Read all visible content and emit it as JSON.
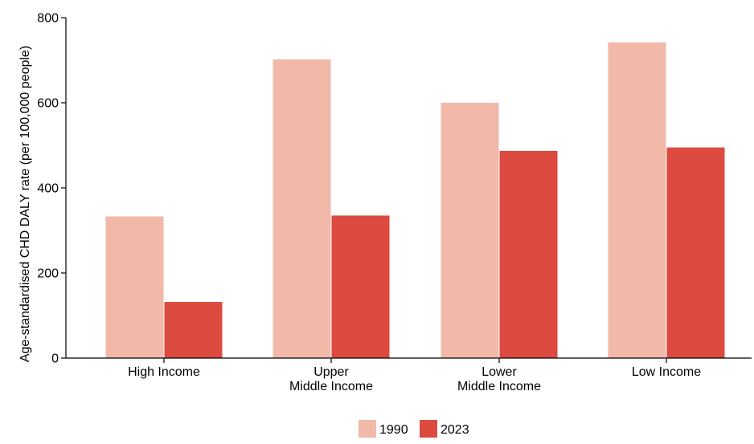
{
  "colors": {
    "series_1990": "#f2b8a8",
    "series_2023": "#dd4a3f",
    "axis": "#000000"
  },
  "chart_data": {
    "type": "bar",
    "title": "",
    "xlabel": "",
    "ylabel": "Age-standardised CHD DALY rate (per 100,000 people)",
    "ylim": [
      0,
      800
    ],
    "yticks": [
      0,
      200,
      400,
      600,
      800
    ],
    "grid": false,
    "legend_placement": "bottom-center",
    "categories": [
      [
        "High Income"
      ],
      [
        "Upper",
        "Middle Income"
      ],
      [
        "Lower",
        "Middle Income"
      ],
      [
        "Low Income"
      ]
    ],
    "series": [
      {
        "name": "1990",
        "color": "#f2b8a8",
        "values": [
          333,
          702,
          600,
          742
        ]
      },
      {
        "name": "2023",
        "color": "#dd4a3f",
        "values": [
          132,
          335,
          487,
          495
        ]
      }
    ]
  }
}
